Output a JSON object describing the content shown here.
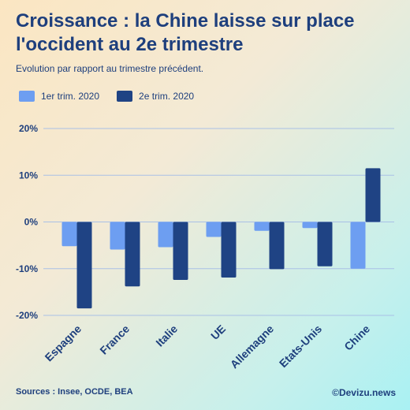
{
  "header": {
    "title": "Croissance : la Chine laisse sur place l'occident au 2e trimestre",
    "subtitle": "Evolution par rapport au trimestre précédent."
  },
  "footer": {
    "source": "Sources : Insee, OCDE, BEA",
    "brand": "©Devizu.news"
  },
  "colors": {
    "series1": "#6d9ef1",
    "series2": "#1f4384",
    "text": "#1e3f7d",
    "grid": "#a9c0e6"
  },
  "chart_data": {
    "type": "bar",
    "categories": [
      "Espagne",
      "France",
      "Italie",
      "UE",
      "Allemagne",
      "Etats-Unis",
      "Chine"
    ],
    "series": [
      {
        "name": "1er trim. 2020",
        "values": [
          -5.2,
          -5.9,
          -5.4,
          -3.2,
          -1.9,
          -1.3,
          -10.0
        ]
      },
      {
        "name": "2e trim. 2020",
        "values": [
          -18.5,
          -13.8,
          -12.4,
          -11.9,
          -10.1,
          -9.5,
          11.5
        ]
      }
    ],
    "ylim": [
      -20,
      20
    ],
    "yticks": [
      20,
      10,
      0,
      -10,
      -20
    ],
    "ytick_labels": [
      "20%",
      "10%",
      "0%",
      "-10%",
      "-20%"
    ],
    "grid": true,
    "legend": "top-left"
  }
}
